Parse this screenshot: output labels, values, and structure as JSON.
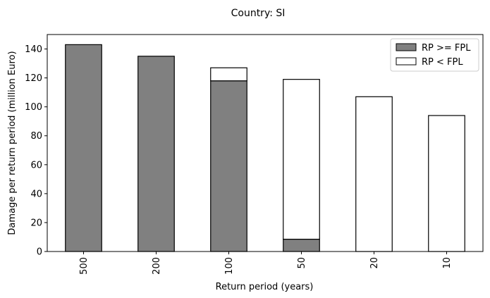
{
  "chart_data": {
    "type": "bar",
    "stacked": true,
    "title": "Country: SI",
    "xlabel": "Return period (years)",
    "ylabel": "Damage per return period (million Euro)",
    "categories": [
      "500",
      "200",
      "100",
      "50",
      "20",
      "10"
    ],
    "series": [
      {
        "name": "RP >= FPL",
        "values": [
          143,
          135,
          118,
          8.5,
          0,
          0
        ],
        "color": "#808080"
      },
      {
        "name": "RP < FPL",
        "values": [
          0,
          0,
          9,
          110.5,
          107,
          94
        ],
        "color": "#ffffff"
      }
    ],
    "ylim": [
      0,
      150
    ],
    "yticks": [
      0,
      20,
      40,
      60,
      80,
      100,
      120,
      140
    ],
    "grid": false,
    "legend_position": "top-right",
    "edge_color": "#000000"
  }
}
